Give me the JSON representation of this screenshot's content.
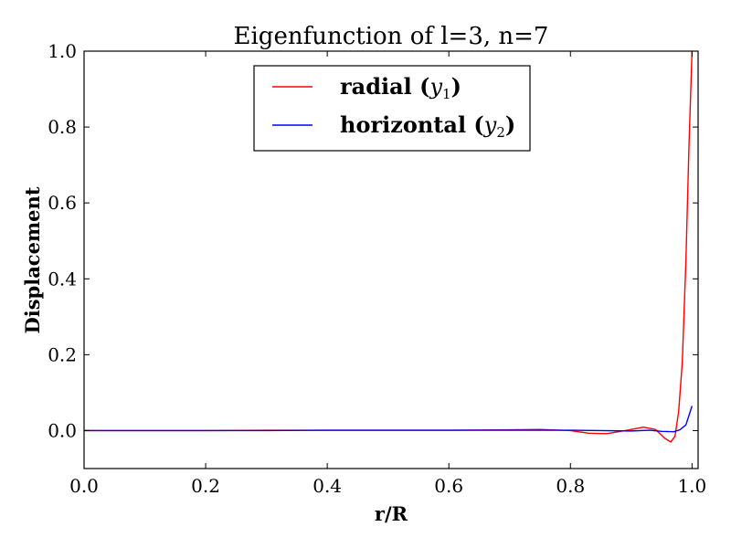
{
  "chart_data": {
    "type": "line",
    "title": "Eigenfunction of l=3, n=7",
    "xlabel": "r/R",
    "ylabel": "Displacement",
    "xlim": [
      0.0,
      1.01
    ],
    "ylim": [
      -0.1,
      1.0
    ],
    "xticks": [
      0.0,
      0.2,
      0.4,
      0.6,
      0.8,
      1.0
    ],
    "xtick_labels": [
      "0.0",
      "0.2",
      "0.4",
      "0.6",
      "0.8",
      "1.0"
    ],
    "yticks": [
      0.0,
      0.2,
      0.4,
      0.6,
      0.8,
      1.0
    ],
    "ytick_labels": [
      "0.0",
      "0.2",
      "0.4",
      "0.6",
      "0.8",
      "1.0"
    ],
    "grid": false,
    "legend": {
      "placement": "top-center",
      "frame": true
    },
    "series": [
      {
        "name": "radial",
        "subscript_symbol": "y",
        "subscript": "1",
        "color": "#ff0000",
        "x": [
          0.0,
          0.1,
          0.2,
          0.3,
          0.4,
          0.5,
          0.6,
          0.7,
          0.75,
          0.8,
          0.83,
          0.86,
          0.89,
          0.92,
          0.94,
          0.955,
          0.965,
          0.972,
          0.978,
          0.984,
          0.99,
          0.995,
          1.0
        ],
        "values": [
          0.0,
          0.0,
          0.0,
          0.001,
          0.001,
          0.001,
          0.001,
          0.002,
          0.003,
          0.0,
          -0.007,
          -0.008,
          0.0,
          0.009,
          0.003,
          -0.02,
          -0.03,
          -0.015,
          0.05,
          0.18,
          0.45,
          0.75,
          1.0
        ]
      },
      {
        "name": "horizontal",
        "subscript_symbol": "y",
        "subscript": "2",
        "color": "#0000ff",
        "x": [
          0.0,
          0.1,
          0.2,
          0.3,
          0.4,
          0.5,
          0.6,
          0.7,
          0.8,
          0.85,
          0.9,
          0.93,
          0.95,
          0.97,
          0.98,
          0.99,
          0.995,
          1.0
        ],
        "values": [
          0.0,
          0.0,
          0.0,
          0.0,
          0.001,
          0.001,
          0.001,
          0.001,
          0.001,
          0.0,
          -0.001,
          0.001,
          -0.002,
          -0.003,
          0.002,
          0.015,
          0.04,
          0.065
        ]
      }
    ]
  }
}
